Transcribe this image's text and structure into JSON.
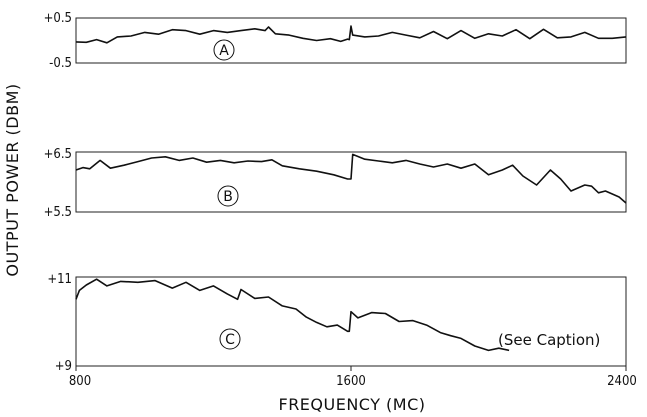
{
  "chart_data": {
    "type": "line",
    "xlabel": "FREQUENCY (MC)",
    "ylabel": "OUTPUT POWER (DBM)",
    "xlim": [
      800,
      2400
    ],
    "x_ticks": [
      "800",
      "1600",
      "2400"
    ],
    "annotation": "(See Caption)",
    "panels": [
      {
        "label": "A",
        "ylim": [
          -0.5,
          0.5
        ],
        "y_ticks": [
          "+0.5",
          "-0.5"
        ],
        "x": [
          800,
          830,
          860,
          890,
          920,
          960,
          1000,
          1040,
          1080,
          1120,
          1160,
          1200,
          1240,
          1280,
          1320,
          1350,
          1360,
          1380,
          1420,
          1460,
          1500,
          1540,
          1570,
          1590,
          1595,
          1600,
          1605,
          1640,
          1680,
          1720,
          1760,
          1800,
          1840,
          1880,
          1920,
          1960,
          2000,
          2040,
          2080,
          2120,
          2160,
          2200,
          2240,
          2280,
          2320,
          2360,
          2400
        ],
        "y": [
          -0.03,
          -0.04,
          0.02,
          -0.05,
          0.08,
          0.1,
          0.18,
          0.14,
          0.24,
          0.22,
          0.14,
          0.22,
          0.18,
          0.22,
          0.26,
          0.22,
          0.3,
          0.15,
          0.12,
          0.05,
          0.0,
          0.04,
          -0.02,
          0.03,
          0.02,
          0.32,
          0.12,
          0.08,
          0.1,
          0.18,
          0.12,
          0.06,
          0.2,
          0.04,
          0.22,
          0.05,
          0.15,
          0.1,
          0.24,
          0.04,
          0.25,
          0.06,
          0.08,
          0.18,
          0.05,
          0.05,
          0.08
        ]
      },
      {
        "label": "B",
        "ylim": [
          5.5,
          6.5
        ],
        "y_ticks": [
          "+6.5",
          "+5.5"
        ],
        "x": [
          800,
          820,
          840,
          870,
          900,
          940,
          980,
          1020,
          1060,
          1100,
          1140,
          1180,
          1220,
          1260,
          1300,
          1340,
          1370,
          1400,
          1450,
          1500,
          1550,
          1590,
          1600,
          1605,
          1640,
          1680,
          1720,
          1760,
          1800,
          1840,
          1880,
          1920,
          1960,
          2000,
          2040,
          2070,
          2100,
          2140,
          2180,
          2210,
          2240,
          2280,
          2300,
          2320,
          2340,
          2360,
          2380,
          2400
        ],
        "y": [
          6.2,
          6.24,
          6.22,
          6.36,
          6.23,
          6.28,
          6.34,
          6.4,
          6.42,
          6.36,
          6.4,
          6.33,
          6.36,
          6.32,
          6.35,
          6.34,
          6.37,
          6.27,
          6.22,
          6.18,
          6.12,
          6.05,
          6.05,
          6.46,
          6.38,
          6.35,
          6.32,
          6.36,
          6.3,
          6.25,
          6.3,
          6.23,
          6.3,
          6.12,
          6.2,
          6.28,
          6.1,
          5.95,
          6.2,
          6.05,
          5.85,
          5.95,
          5.93,
          5.82,
          5.85,
          5.8,
          5.75,
          5.65
        ]
      },
      {
        "label": "C",
        "ylim": [
          9,
          11
        ],
        "y_ticks": [
          "+11",
          "+9"
        ],
        "x": [
          800,
          810,
          830,
          860,
          890,
          930,
          980,
          1030,
          1080,
          1120,
          1160,
          1200,
          1240,
          1270,
          1280,
          1320,
          1360,
          1400,
          1440,
          1470,
          1500,
          1530,
          1560,
          1590,
          1595,
          1600,
          1620,
          1660,
          1700,
          1740,
          1780,
          1820,
          1860,
          1890,
          1920,
          1960,
          2000,
          2030,
          2060
        ],
        "y": [
          10.5,
          10.7,
          10.82,
          10.95,
          10.8,
          10.9,
          10.88,
          10.92,
          10.75,
          10.88,
          10.7,
          10.8,
          10.62,
          10.5,
          10.72,
          10.52,
          10.55,
          10.35,
          10.28,
          10.1,
          9.98,
          9.88,
          9.92,
          9.78,
          9.78,
          10.22,
          10.08,
          10.2,
          10.18,
          10.0,
          10.02,
          9.92,
          9.75,
          9.68,
          9.62,
          9.45,
          9.35,
          9.4,
          9.35
        ]
      }
    ]
  }
}
